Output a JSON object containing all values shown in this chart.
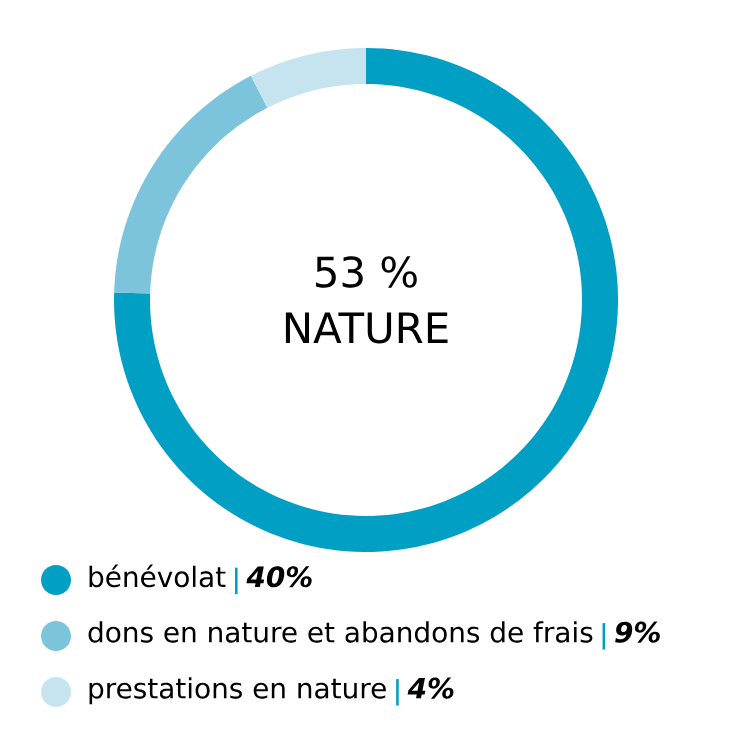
{
  "chart_data": {
    "type": "donut",
    "categories": [
      "bénévolat",
      "dons en nature et abandons de frais",
      "prestations en nature"
    ],
    "values": [
      40,
      9,
      4
    ],
    "colors": [
      "#009fc3",
      "#7cc3dc",
      "#c5e4ef"
    ],
    "value_labels": [
      "40%",
      "9%",
      "4%"
    ],
    "annotations": [
      "53 %",
      "NATURE"
    ],
    "legend": "bottom left"
  }
}
